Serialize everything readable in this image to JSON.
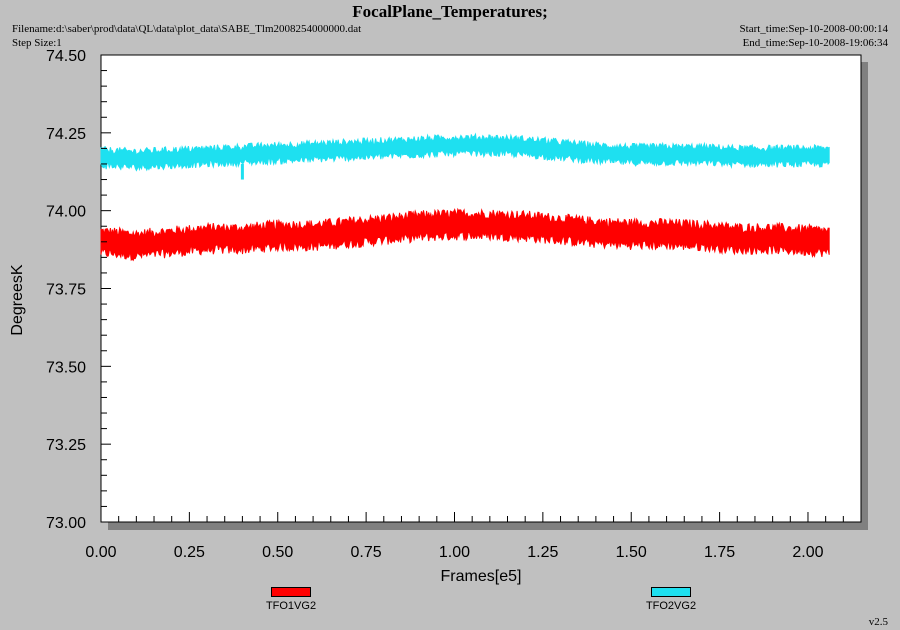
{
  "header": {
    "title": "FocalPlane_Temperatures;",
    "filename": "Filename:d:\\saber\\prod\\data\\QL\\data\\plot_data\\SABE_Tlm2008254000000.dat",
    "step_size": "Step Size:1",
    "start_time": "Start_time:Sep-10-2008-00:00:14",
    "end_time": "End_time:Sep-10-2008-19:06:34"
  },
  "version": "v2.5",
  "colors": {
    "background": "#c0c0c0",
    "plot_bg": "#ffffff",
    "series1": "#ff0000",
    "series2": "#1ee0f0"
  },
  "chart_data": {
    "type": "line",
    "title": "FocalPlane_Temperatures;",
    "xlabel": "Frames[e5]",
    "ylabel": "DegreesK",
    "xlim": [
      0,
      2.15
    ],
    "ylim": [
      73.0,
      74.5
    ],
    "xticks": [
      "0.00",
      "0.25",
      "0.50",
      "0.75",
      "1.00",
      "1.25",
      "1.50",
      "1.75",
      "2.00"
    ],
    "yticks": [
      "73.00",
      "73.25",
      "73.50",
      "73.75",
      "74.00",
      "74.25",
      "74.50"
    ],
    "grid": false,
    "legend_position": "bottom",
    "series": [
      {
        "name": "TFO1VG2",
        "color": "#ff0000",
        "band_halfwidth": 0.035,
        "x": [
          0.0,
          0.1,
          0.2,
          0.3,
          0.4,
          0.5,
          0.6,
          0.7,
          0.8,
          0.9,
          1.0,
          1.1,
          1.2,
          1.3,
          1.4,
          1.5,
          1.6,
          1.7,
          1.8,
          1.9,
          2.0,
          2.06
        ],
        "y": [
          73.9,
          73.89,
          73.9,
          73.91,
          73.91,
          73.92,
          73.92,
          73.93,
          73.94,
          73.95,
          73.955,
          73.955,
          73.95,
          73.94,
          73.93,
          73.925,
          73.925,
          73.92,
          73.91,
          73.91,
          73.905,
          73.9
        ]
      },
      {
        "name": "TFO2VG2",
        "color": "#1ee0f0",
        "band_halfwidth": 0.025,
        "x": [
          0.0,
          0.1,
          0.2,
          0.3,
          0.4,
          0.5,
          0.6,
          0.7,
          0.8,
          0.9,
          1.0,
          1.1,
          1.2,
          1.3,
          1.4,
          1.5,
          1.6,
          1.7,
          1.8,
          1.9,
          2.0,
          2.06
        ],
        "y": [
          74.17,
          74.165,
          74.17,
          74.175,
          74.18,
          74.185,
          74.19,
          74.195,
          74.2,
          74.205,
          74.21,
          74.21,
          74.205,
          74.195,
          74.185,
          74.18,
          74.18,
          74.18,
          74.175,
          74.175,
          74.175,
          74.175
        ]
      }
    ]
  }
}
